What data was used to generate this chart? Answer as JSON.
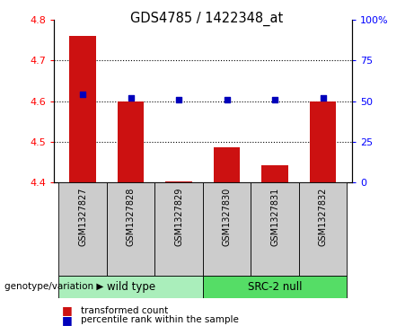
{
  "title": "GDS4785 / 1422348_at",
  "samples": [
    "GSM1327827",
    "GSM1327828",
    "GSM1327829",
    "GSM1327830",
    "GSM1327831",
    "GSM1327832"
  ],
  "bar_values": [
    4.76,
    4.6,
    4.402,
    4.487,
    4.442,
    4.6
  ],
  "percentile_values": [
    54,
    52,
    51,
    51,
    51,
    52
  ],
  "ymin": 4.4,
  "ymax": 4.8,
  "yticks": [
    4.4,
    4.5,
    4.6,
    4.7,
    4.8
  ],
  "right_yticks": [
    0,
    25,
    50,
    75,
    100
  ],
  "right_yticklabels": [
    "0",
    "25",
    "50",
    "75",
    "100%"
  ],
  "bar_color": "#CC1111",
  "dot_color": "#0000BB",
  "group1_label": "wild type",
  "group2_label": "SRC-2 null",
  "group1_indices": [
    0,
    1,
    2
  ],
  "group2_indices": [
    3,
    4,
    5
  ],
  "group1_color": "#AAEEBB",
  "group2_color": "#55DD66",
  "bottom_label": "genotype/variation",
  "legend_bar_label": "transformed count",
  "legend_dot_label": "percentile rank within the sample",
  "bar_width": 0.55,
  "baseline": 4.4
}
